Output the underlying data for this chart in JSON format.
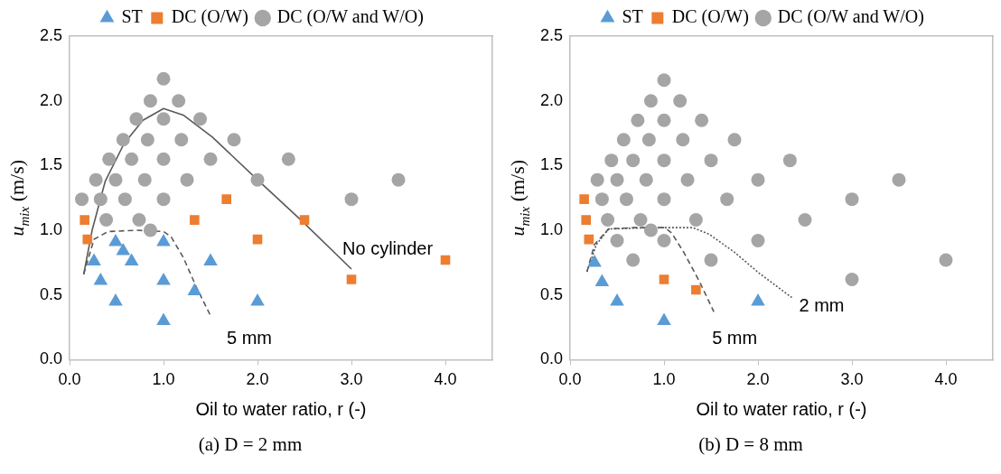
{
  "chart_data": [
    {
      "type": "scatter",
      "xlabel": "Oil to water ratio, r (-)",
      "ylabel": "u$_{mix}$ (m/s)",
      "legend": "top",
      "grid": false,
      "xlim": [
        0,
        4.5
      ],
      "xticks": [
        {
          "value": 0,
          "label": "0.0"
        },
        {
          "value": 1,
          "label": "1.0"
        },
        {
          "value": 2,
          "label": "2.0"
        },
        {
          "value": 3,
          "label": "3.0"
        },
        {
          "value": 4,
          "label": "4.0"
        }
      ],
      "ylim": [
        0,
        2.5
      ],
      "yticks": [
        {
          "value": 0,
          "label": "0.0"
        },
        {
          "value": 0.5,
          "label": "0.5"
        },
        {
          "value": 1,
          "label": "1.0"
        },
        {
          "value": 1.5,
          "label": "1.5"
        },
        {
          "value": 2,
          "label": "2.0"
        },
        {
          "value": 2.5,
          "label": "2.5"
        }
      ],
      "series": [
        {
          "name": "ST",
          "color": "#5b9bd5",
          "marker": "triangle",
          "x": [
            0.49,
            0.57,
            0.66,
            0.26,
            0.33,
            0.49,
            1.0,
            1.0,
            1.0,
            1.33,
            1.5,
            2.0
          ],
          "values": [
            0.91,
            0.84,
            0.76,
            0.76,
            0.61,
            0.45,
            0.91,
            0.61,
            0.3,
            0.53,
            0.76,
            0.45
          ]
        },
        {
          "name": "DC (O/W)",
          "color": "#ed7d31",
          "marker": "square",
          "x": [
            0.16,
            0.19,
            1.33,
            1.67,
            2.0,
            2.5,
            3.0,
            4.0
          ],
          "values": [
            1.08,
            0.93,
            1.08,
            1.24,
            0.93,
            1.08,
            0.62,
            0.77
          ]
        },
        {
          "name": "DC (O/W and W/O)",
          "color": "#a5a5a5",
          "marker": "circle",
          "x": [
            1.0,
            0.86,
            1.16,
            0.71,
            1.0,
            1.39,
            0.57,
            0.83,
            1.19,
            1.75,
            0.42,
            0.66,
            1.0,
            1.5,
            2.33,
            0.28,
            0.49,
            0.8,
            1.25,
            2.0,
            3.5,
            0.13,
            0.33,
            0.59,
            1.0,
            3.0,
            0.39,
            0.74,
            0.86
          ],
          "values": [
            2.17,
            2.0,
            2.0,
            1.86,
            1.86,
            1.86,
            1.7,
            1.7,
            1.7,
            1.7,
            1.55,
            1.55,
            1.55,
            1.55,
            1.55,
            1.39,
            1.39,
            1.39,
            1.39,
            1.39,
            1.39,
            1.24,
            1.24,
            1.24,
            1.24,
            1.24,
            1.08,
            1.08,
            1.0
          ]
        },
        {
          "type": "line",
          "name": "No cylinder",
          "color": "#595959",
          "marker": "none",
          "line_style": "solid",
          "x": [
            0.15,
            0.24,
            0.38,
            0.58,
            0.78,
            1.0,
            1.21,
            1.52,
            2.0,
            2.49,
            3.0
          ],
          "values": [
            0.66,
            1.0,
            1.38,
            1.67,
            1.85,
            1.94,
            1.89,
            1.72,
            1.39,
            1.06,
            0.7
          ]
        },
        {
          "type": "line",
          "name": "5 mm",
          "color": "#595959",
          "marker": "none",
          "line_style": "dashed",
          "x": [
            0.15,
            0.26,
            0.41,
            0.71,
            1.0,
            1.08,
            1.21,
            1.35,
            1.5
          ],
          "values": [
            0.66,
            0.93,
            0.99,
            1.0,
            0.99,
            0.95,
            0.79,
            0.56,
            0.34
          ]
        }
      ],
      "annotations": [
        "(a)  D = 2 mm"
      ]
    },
    {
      "type": "scatter",
      "xlabel": "Oil to water ratio, r (-)",
      "ylabel": "u$_{mix}$ (m/s)",
      "legend": "top",
      "grid": false,
      "xlim": [
        0,
        4.5
      ],
      "xticks": [
        {
          "value": 0,
          "label": "0.0"
        },
        {
          "value": 1,
          "label": "1.0"
        },
        {
          "value": 2,
          "label": "2.0"
        },
        {
          "value": 3,
          "label": "3.0"
        },
        {
          "value": 4,
          "label": "4.0"
        }
      ],
      "ylim": [
        0,
        2.5
      ],
      "yticks": [
        {
          "value": 0,
          "label": "0.0"
        },
        {
          "value": 0.5,
          "label": "0.5"
        },
        {
          "value": 1,
          "label": "1.0"
        },
        {
          "value": 1.5,
          "label": "1.5"
        },
        {
          "value": 2,
          "label": "2.0"
        },
        {
          "value": 2.5,
          "label": "2.5"
        }
      ],
      "series": [
        {
          "name": "ST",
          "color": "#5b9bd5",
          "marker": "triangle",
          "x": [
            0.26,
            0.34,
            0.5,
            1.0,
            2.0
          ],
          "values": [
            0.75,
            0.6,
            0.45,
            0.3,
            0.45
          ]
        },
        {
          "name": "DC (O/W)",
          "color": "#ed7d31",
          "marker": "square",
          "x": [
            0.15,
            0.17,
            0.2,
            1.0,
            1.34
          ],
          "values": [
            1.24,
            1.08,
            0.93,
            0.62,
            0.54
          ]
        },
        {
          "name": "DC (O/W and W/O)",
          "color": "#a5a5a5",
          "marker": "circle",
          "x": [
            1.0,
            0.86,
            1.17,
            0.72,
            1.0,
            1.4,
            0.57,
            0.84,
            1.2,
            1.75,
            0.44,
            0.67,
            1.0,
            1.5,
            2.34,
            0.29,
            0.5,
            0.81,
            1.25,
            2.0,
            3.5,
            0.34,
            0.6,
            1.0,
            1.67,
            3.0,
            0.4,
            0.75,
            1.34,
            2.5,
            0.86,
            0.5,
            1.0,
            2.0,
            0.67,
            1.5,
            4.0,
            3.0
          ],
          "values": [
            2.16,
            2.0,
            2.0,
            1.85,
            1.85,
            1.85,
            1.7,
            1.7,
            1.7,
            1.7,
            1.54,
            1.54,
            1.54,
            1.54,
            1.54,
            1.39,
            1.39,
            1.39,
            1.39,
            1.39,
            1.39,
            1.24,
            1.24,
            1.24,
            1.24,
            1.24,
            1.08,
            1.08,
            1.08,
            1.08,
            1.0,
            0.92,
            0.92,
            0.92,
            0.77,
            0.77,
            0.77,
            0.62
          ]
        },
        {
          "type": "line",
          "name": "5 mm",
          "color": "#595959",
          "marker": "none",
          "line_style": "dashed",
          "x": [
            0.18,
            0.26,
            0.41,
            0.68,
            1.01,
            1.08,
            1.21,
            1.38,
            1.53
          ],
          "values": [
            0.68,
            0.89,
            1.01,
            1.02,
            1.02,
            0.98,
            0.83,
            0.6,
            0.37
          ]
        },
        {
          "type": "line",
          "name": "2 mm",
          "color": "#595959",
          "marker": "none",
          "line_style": "dotted",
          "x": [
            0.18,
            0.28,
            0.41,
            0.85,
            1.31,
            1.48,
            1.75,
            2.01,
            2.36
          ],
          "values": [
            0.68,
            0.89,
            1.01,
            1.02,
            1.02,
            0.97,
            0.83,
            0.67,
            0.48
          ]
        }
      ],
      "annotations": [
        "(b)  D = 8 mm"
      ]
    }
  ]
}
